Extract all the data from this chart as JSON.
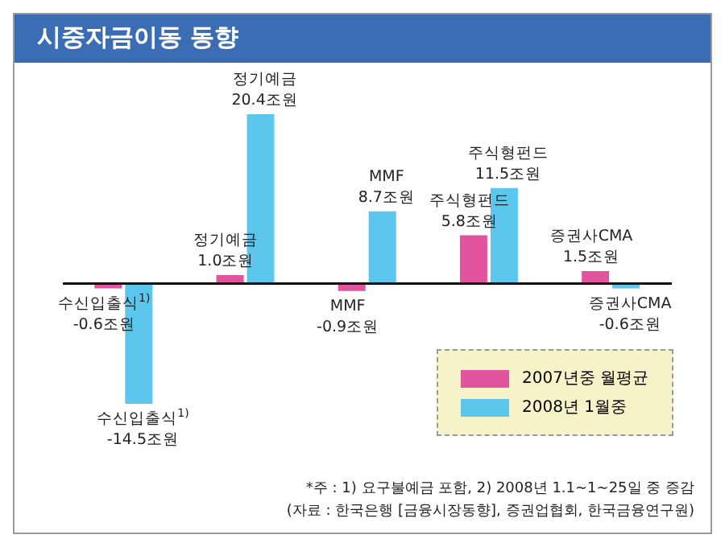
{
  "chart_data": {
    "type": "bar",
    "title": "시중자금이동 동향",
    "categories": [
      "수신입출식$^{1)}$",
      "정기예금",
      "MMF",
      "주식형펀드",
      "증권사CMA"
    ],
    "series": [
      {
        "name": "2007년중 월평균",
        "color": "#e2559e",
        "values": [
          -0.6,
          1.0,
          -0.9,
          5.8,
          1.5
        ],
        "value_labels": [
          "-0.6조원",
          "1.0조원",
          "-0.9조원",
          "5.8조원",
          "1.5조원"
        ]
      },
      {
        "name": "2008년 1월중",
        "color": "#5cc6ec",
        "values": [
          -14.5,
          20.4,
          8.7,
          11.5,
          -0.6
        ],
        "value_labels": [
          "-14.5조원",
          "20.4조원",
          "8.7조원",
          "11.5조원",
          "-0.6조원"
        ]
      }
    ],
    "legend": "bottom right",
    "grid": false,
    "annotations": [
      "*주 : 1) 요구불예금 포함, 2) 2008년 1.1~1~25일 중 증감",
      "(자료 : 한국은행 [금융시장동향], 증권업협회, 한국금융연구원)"
    ]
  }
}
